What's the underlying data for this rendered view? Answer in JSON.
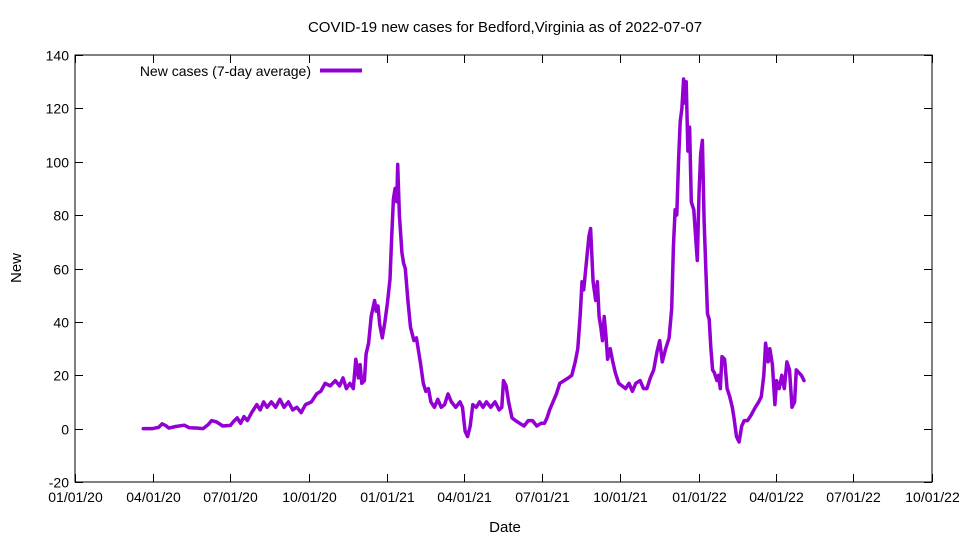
{
  "chart_data": {
    "type": "line",
    "title": "COVID-19 new cases for Bedford,Virginia as of 2022-07-07",
    "xlabel": "Date",
    "ylabel": "New",
    "xlim": [
      "2020-01-01",
      "2022-10-01"
    ],
    "ylim": [
      -20,
      140
    ],
    "grid": false,
    "legend_position": "top-left",
    "line_color": "#9400d3",
    "x_ticks": [
      {
        "label": "01/01/20",
        "date": "2020-01-01"
      },
      {
        "label": "04/01/20",
        "date": "2020-04-01"
      },
      {
        "label": "07/01/20",
        "date": "2020-07-01"
      },
      {
        "label": "10/01/20",
        "date": "2020-10-01"
      },
      {
        "label": "01/01/21",
        "date": "2021-01-01"
      },
      {
        "label": "04/01/21",
        "date": "2021-04-01"
      },
      {
        "label": "07/01/21",
        "date": "2021-07-01"
      },
      {
        "label": "10/01/21",
        "date": "2021-10-01"
      },
      {
        "label": "01/01/22",
        "date": "2022-01-01"
      },
      {
        "label": "04/01/22",
        "date": "2022-04-01"
      },
      {
        "label": "07/01/22",
        "date": "2022-07-01"
      },
      {
        "label": "10/01/22",
        "date": "2022-10-01"
      }
    ],
    "y_ticks": [
      -20,
      0,
      20,
      40,
      60,
      80,
      100,
      120,
      140
    ],
    "series": [
      {
        "name": "New cases (7-day average)",
        "points": [
          [
            "2020-03-21",
            0
          ],
          [
            "2020-04-01",
            0
          ],
          [
            "2020-04-08",
            0.5
          ],
          [
            "2020-04-12",
            1.8
          ],
          [
            "2020-04-16",
            1.2
          ],
          [
            "2020-04-20",
            0.2
          ],
          [
            "2020-04-28",
            0.8
          ],
          [
            "2020-05-08",
            1.3
          ],
          [
            "2020-05-14",
            0.3
          ],
          [
            "2020-05-24",
            0.2
          ],
          [
            "2020-05-30",
            0
          ],
          [
            "2020-06-05",
            1.5
          ],
          [
            "2020-06-09",
            3
          ],
          [
            "2020-06-15",
            2.5
          ],
          [
            "2020-06-22",
            1
          ],
          [
            "2020-07-01",
            1.2
          ],
          [
            "2020-07-05",
            2.8
          ],
          [
            "2020-07-09",
            4
          ],
          [
            "2020-07-13",
            2
          ],
          [
            "2020-07-17",
            4.5
          ],
          [
            "2020-07-21",
            3
          ],
          [
            "2020-07-26",
            6
          ],
          [
            "2020-08-01",
            9
          ],
          [
            "2020-08-05",
            7
          ],
          [
            "2020-08-09",
            10
          ],
          [
            "2020-08-13",
            8
          ],
          [
            "2020-08-18",
            10
          ],
          [
            "2020-08-23",
            8
          ],
          [
            "2020-08-28",
            11
          ],
          [
            "2020-09-02",
            8
          ],
          [
            "2020-09-07",
            10
          ],
          [
            "2020-09-12",
            7
          ],
          [
            "2020-09-17",
            8
          ],
          [
            "2020-09-22",
            6
          ],
          [
            "2020-09-27",
            9
          ],
          [
            "2020-10-04",
            10
          ],
          [
            "2020-10-10",
            13
          ],
          [
            "2020-10-15",
            14
          ],
          [
            "2020-10-20",
            17
          ],
          [
            "2020-10-26",
            16
          ],
          [
            "2020-11-01",
            18
          ],
          [
            "2020-11-06",
            16
          ],
          [
            "2020-11-10",
            19
          ],
          [
            "2020-11-14",
            15
          ],
          [
            "2020-11-18",
            17
          ],
          [
            "2020-11-22",
            15
          ],
          [
            "2020-11-25",
            26
          ],
          [
            "2020-11-28",
            19
          ],
          [
            "2020-11-30",
            24
          ],
          [
            "2020-12-02",
            17
          ],
          [
            "2020-12-05",
            18
          ],
          [
            "2020-12-07",
            28
          ],
          [
            "2020-12-10",
            32
          ],
          [
            "2020-12-13",
            42
          ],
          [
            "2020-12-17",
            48
          ],
          [
            "2020-12-19",
            44
          ],
          [
            "2020-12-21",
            46
          ],
          [
            "2020-12-23",
            39
          ],
          [
            "2020-12-26",
            34
          ],
          [
            "2020-12-29",
            40
          ],
          [
            "2021-01-01",
            47
          ],
          [
            "2021-01-04",
            56
          ],
          [
            "2021-01-06",
            72
          ],
          [
            "2021-01-08",
            86
          ],
          [
            "2021-01-10",
            90
          ],
          [
            "2021-01-12",
            85
          ],
          [
            "2021-01-13",
            99
          ],
          [
            "2021-01-15",
            80
          ],
          [
            "2021-01-18",
            66
          ],
          [
            "2021-01-20",
            62
          ],
          [
            "2021-01-22",
            60
          ],
          [
            "2021-01-25",
            48
          ],
          [
            "2021-01-28",
            38
          ],
          [
            "2021-02-01",
            33
          ],
          [
            "2021-02-04",
            34
          ],
          [
            "2021-02-07",
            28
          ],
          [
            "2021-02-09",
            24
          ],
          [
            "2021-02-12",
            17
          ],
          [
            "2021-02-15",
            14
          ],
          [
            "2021-02-18",
            15
          ],
          [
            "2021-02-21",
            10
          ],
          [
            "2021-02-25",
            8
          ],
          [
            "2021-03-01",
            11
          ],
          [
            "2021-03-05",
            8
          ],
          [
            "2021-03-09",
            9
          ],
          [
            "2021-03-13",
            13
          ],
          [
            "2021-03-17",
            10
          ],
          [
            "2021-03-22",
            8
          ],
          [
            "2021-03-27",
            10
          ],
          [
            "2021-03-30",
            8
          ],
          [
            "2021-04-02",
            -1
          ],
          [
            "2021-04-05",
            -3
          ],
          [
            "2021-04-08",
            1
          ],
          [
            "2021-04-11",
            9
          ],
          [
            "2021-04-15",
            8
          ],
          [
            "2021-04-19",
            10
          ],
          [
            "2021-04-23",
            8
          ],
          [
            "2021-04-27",
            10
          ],
          [
            "2021-05-02",
            8
          ],
          [
            "2021-05-07",
            10
          ],
          [
            "2021-05-12",
            7
          ],
          [
            "2021-05-15",
            8
          ],
          [
            "2021-05-17",
            18
          ],
          [
            "2021-05-20",
            16
          ],
          [
            "2021-05-23",
            10
          ],
          [
            "2021-05-27",
            4
          ],
          [
            "2021-05-31",
            3
          ],
          [
            "2021-06-05",
            2
          ],
          [
            "2021-06-10",
            1
          ],
          [
            "2021-06-15",
            3
          ],
          [
            "2021-06-20",
            3
          ],
          [
            "2021-06-25",
            1
          ],
          [
            "2021-06-30",
            2
          ],
          [
            "2021-07-04",
            2
          ],
          [
            "2021-07-07",
            4
          ],
          [
            "2021-07-10",
            7
          ],
          [
            "2021-07-14",
            10
          ],
          [
            "2021-07-18",
            13
          ],
          [
            "2021-07-22",
            17
          ],
          [
            "2021-07-27",
            18
          ],
          [
            "2021-08-01",
            19
          ],
          [
            "2021-08-05",
            20
          ],
          [
            "2021-08-09",
            25
          ],
          [
            "2021-08-12",
            30
          ],
          [
            "2021-08-15",
            43
          ],
          [
            "2021-08-17",
            55
          ],
          [
            "2021-08-19",
            52
          ],
          [
            "2021-08-22",
            62
          ],
          [
            "2021-08-25",
            72
          ],
          [
            "2021-08-27",
            75
          ],
          [
            "2021-08-30",
            55
          ],
          [
            "2021-09-02",
            48
          ],
          [
            "2021-09-04",
            55
          ],
          [
            "2021-09-06",
            42
          ],
          [
            "2021-09-08",
            38
          ],
          [
            "2021-09-10",
            33
          ],
          [
            "2021-09-12",
            42
          ],
          [
            "2021-09-14",
            35
          ],
          [
            "2021-09-16",
            26
          ],
          [
            "2021-09-19",
            30
          ],
          [
            "2021-09-22",
            25
          ],
          [
            "2021-09-25",
            21
          ],
          [
            "2021-09-29",
            17
          ],
          [
            "2021-10-03",
            16
          ],
          [
            "2021-10-07",
            15
          ],
          [
            "2021-10-11",
            17
          ],
          [
            "2021-10-15",
            14
          ],
          [
            "2021-10-19",
            17
          ],
          [
            "2021-10-24",
            18
          ],
          [
            "2021-10-28",
            15
          ],
          [
            "2021-11-01",
            15
          ],
          [
            "2021-11-05",
            19
          ],
          [
            "2021-11-09",
            22
          ],
          [
            "2021-11-13",
            29
          ],
          [
            "2021-11-16",
            33
          ],
          [
            "2021-11-19",
            25
          ],
          [
            "2021-11-23",
            30
          ],
          [
            "2021-11-27",
            34
          ],
          [
            "2021-11-30",
            45
          ],
          [
            "2021-12-02",
            68
          ],
          [
            "2021-12-04",
            82
          ],
          [
            "2021-12-06",
            80
          ],
          [
            "2021-12-08",
            100
          ],
          [
            "2021-12-10",
            115
          ],
          [
            "2021-12-12",
            120
          ],
          [
            "2021-12-14",
            131
          ],
          [
            "2021-12-15",
            122
          ],
          [
            "2021-12-17",
            130
          ],
          [
            "2021-12-19",
            104
          ],
          [
            "2021-12-21",
            113
          ],
          [
            "2021-12-23",
            85
          ],
          [
            "2021-12-26",
            82
          ],
          [
            "2021-12-28",
            72
          ],
          [
            "2021-12-30",
            63
          ],
          [
            "2022-01-01",
            88
          ],
          [
            "2022-01-03",
            103
          ],
          [
            "2022-01-05",
            108
          ],
          [
            "2022-01-07",
            78
          ],
          [
            "2022-01-09",
            60
          ],
          [
            "2022-01-11",
            43
          ],
          [
            "2022-01-13",
            41
          ],
          [
            "2022-01-15",
            30
          ],
          [
            "2022-01-17",
            22
          ],
          [
            "2022-01-19",
            21
          ],
          [
            "2022-01-22",
            18
          ],
          [
            "2022-01-24",
            20
          ],
          [
            "2022-01-26",
            15
          ],
          [
            "2022-01-28",
            27
          ],
          [
            "2022-01-31",
            26
          ],
          [
            "2022-02-03",
            15
          ],
          [
            "2022-02-06",
            12
          ],
          [
            "2022-02-09",
            8
          ],
          [
            "2022-02-11",
            4
          ],
          [
            "2022-02-14",
            -3
          ],
          [
            "2022-02-17",
            -5
          ],
          [
            "2022-02-20",
            1
          ],
          [
            "2022-02-23",
            3
          ],
          [
            "2022-02-27",
            3
          ],
          [
            "2022-03-03",
            5
          ],
          [
            "2022-03-08",
            8
          ],
          [
            "2022-03-12",
            10
          ],
          [
            "2022-03-15",
            12
          ],
          [
            "2022-03-18",
            20
          ],
          [
            "2022-03-20",
            32
          ],
          [
            "2022-03-23",
            25
          ],
          [
            "2022-03-25",
            30
          ],
          [
            "2022-03-28",
            24
          ],
          [
            "2022-03-31",
            9
          ],
          [
            "2022-04-02",
            18
          ],
          [
            "2022-04-05",
            15
          ],
          [
            "2022-04-08",
            20
          ],
          [
            "2022-04-11",
            15
          ],
          [
            "2022-04-14",
            25
          ],
          [
            "2022-04-17",
            22
          ],
          [
            "2022-04-20",
            8
          ],
          [
            "2022-04-23",
            10
          ],
          [
            "2022-04-25",
            22
          ],
          [
            "2022-04-28",
            21
          ],
          [
            "2022-05-01",
            20
          ],
          [
            "2022-05-04",
            18
          ]
        ]
      }
    ]
  }
}
